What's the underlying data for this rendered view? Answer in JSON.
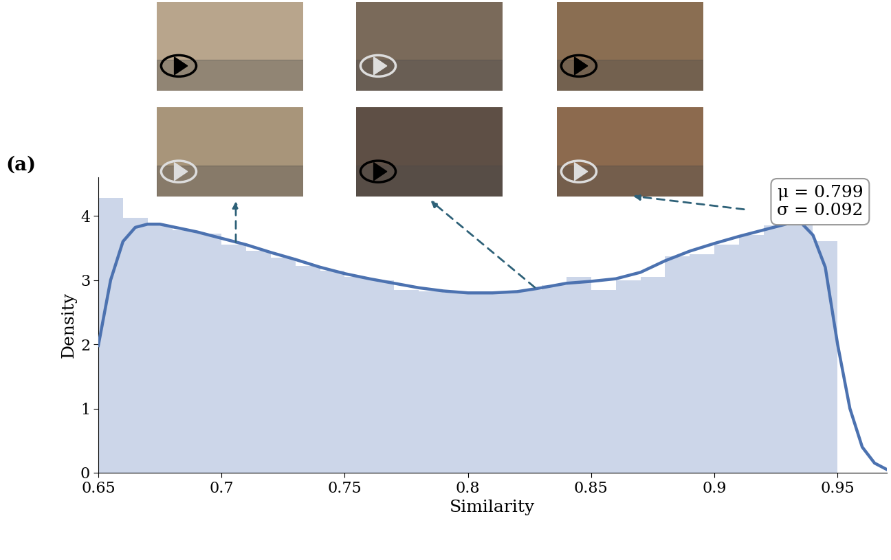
{
  "chart_data": {
    "type": "histogram",
    "panel_label": "(a)",
    "x_label": "Similarity",
    "y_label": "Density",
    "annotation": "μ = 0.799\nσ = 0.092",
    "bins": [
      0.65,
      0.66,
      0.67,
      0.68,
      0.69,
      0.7,
      0.71,
      0.72,
      0.73,
      0.74,
      0.75,
      0.76,
      0.77,
      0.78,
      0.79,
      0.8,
      0.81,
      0.82,
      0.83,
      0.84,
      0.85,
      0.86,
      0.87,
      0.88,
      0.89,
      0.9,
      0.91,
      0.92,
      0.93,
      0.94,
      0.95
    ],
    "counts": [
      4.28,
      3.97,
      3.85,
      3.78,
      3.72,
      3.55,
      3.45,
      3.35,
      3.22,
      3.15,
      3.05,
      3.0,
      2.85,
      2.82,
      2.8,
      2.8,
      2.8,
      2.85,
      2.92,
      3.05,
      2.85,
      3.0,
      3.05,
      3.37,
      3.4,
      3.55,
      3.7,
      3.85,
      3.95,
      3.6
    ],
    "color": "#ccd6e9",
    "kde": {
      "type": "line",
      "color": "#4c72b0",
      "x": [
        0.65,
        0.655,
        0.66,
        0.665,
        0.67,
        0.675,
        0.68,
        0.69,
        0.7,
        0.71,
        0.72,
        0.73,
        0.74,
        0.75,
        0.76,
        0.77,
        0.78,
        0.79,
        0.8,
        0.81,
        0.82,
        0.83,
        0.84,
        0.85,
        0.86,
        0.87,
        0.88,
        0.89,
        0.9,
        0.91,
        0.92,
        0.93,
        0.935,
        0.94,
        0.945,
        0.95,
        0.955,
        0.96,
        0.965,
        0.97
      ],
      "values": [
        1.98,
        3.0,
        3.6,
        3.82,
        3.87,
        3.87,
        3.83,
        3.75,
        3.65,
        3.55,
        3.43,
        3.32,
        3.2,
        3.1,
        3.02,
        2.95,
        2.88,
        2.83,
        2.8,
        2.8,
        2.82,
        2.88,
        2.95,
        2.98,
        3.02,
        3.12,
        3.3,
        3.45,
        3.57,
        3.68,
        3.78,
        3.88,
        3.9,
        3.7,
        3.2,
        2.0,
        1.0,
        0.4,
        0.15,
        0.05
      ]
    },
    "xlim": [
      0.65,
      0.97
    ],
    "xticks": [
      0.65,
      0.7,
      0.75,
      0.8,
      0.85,
      0.9,
      0.95
    ],
    "ylim": [
      0,
      4.6
    ],
    "yticks": [
      0,
      1,
      2,
      3,
      4
    ]
  }
}
